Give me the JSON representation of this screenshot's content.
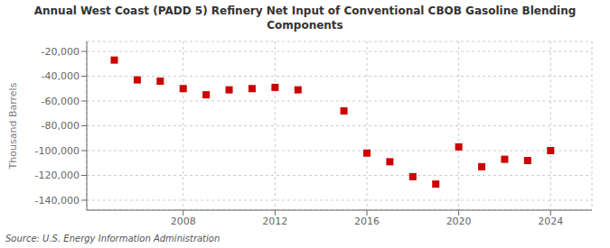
{
  "chart_data": {
    "type": "scatter",
    "title": "Annual West Coast (PADD 5) Refinery Net Input of Conventional CBOB Gasoline Blending\nComponents",
    "ylabel": "Thousand Barrels",
    "annotations": [
      "Source: U.S. Energy Information Administration"
    ],
    "x": [
      2005,
      2006,
      2007,
      2008,
      2009,
      2010,
      2011,
      2012,
      2013,
      2015,
      2016,
      2017,
      2018,
      2019,
      2020,
      2021,
      2022,
      2023,
      2024
    ],
    "values": [
      -27000,
      -43000,
      -44000,
      -50000,
      -55000,
      -51000,
      -50000,
      -49000,
      -51000,
      -68000,
      -102000,
      -109000,
      -121000,
      -127000,
      -97000,
      -113000,
      -107000,
      -108000,
      -100000
    ],
    "color": "#cc0000",
    "marker": "square",
    "xlim": [
      2003.8,
      2025.8
    ],
    "ylim": [
      -148000,
      -12000
    ],
    "xticks": [
      2008,
      2012,
      2016,
      2020,
      2024
    ],
    "yticks": [
      {
        "value": -20000,
        "label": "-20,000"
      },
      {
        "value": -40000,
        "label": "-40,000"
      },
      {
        "value": -60000,
        "label": "-60,000"
      },
      {
        "value": -80000,
        "label": "-80,000"
      },
      {
        "value": -100000,
        "label": "-100,000"
      },
      {
        "value": -120000,
        "label": "-120,000"
      },
      {
        "value": -140000,
        "label": "-140,000"
      }
    ],
    "grid": true
  }
}
